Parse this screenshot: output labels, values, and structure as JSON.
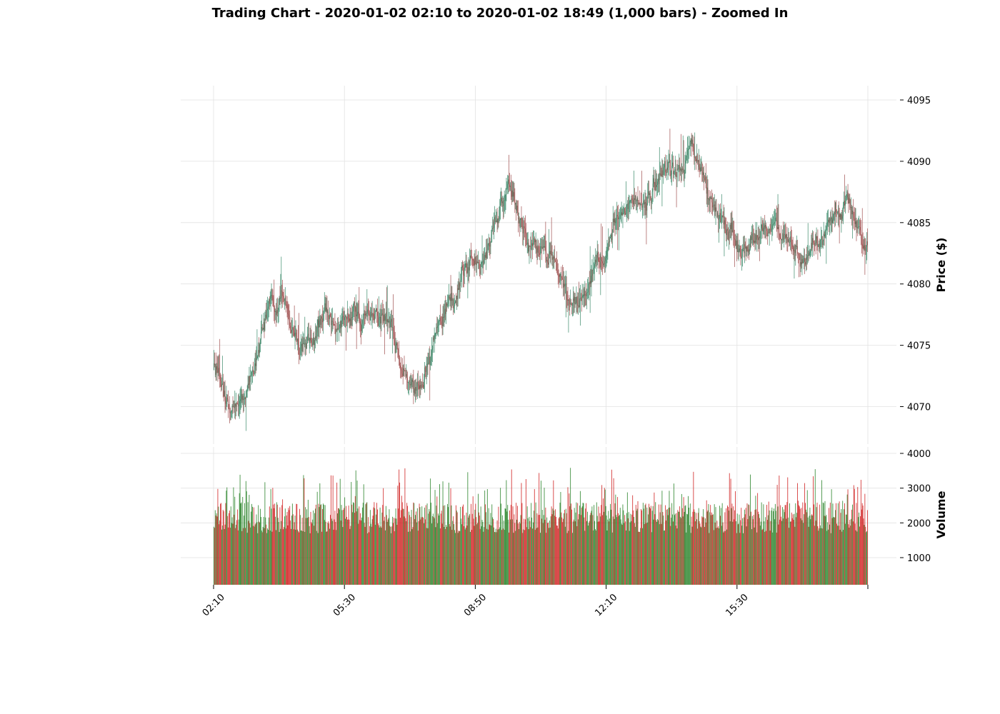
{
  "chart_data": {
    "type": "candlestick",
    "title": "Trading Chart - 2020-01-02 02:10 to 2020-01-02 18:49 (1,000 bars) - Zoomed In",
    "bar_count": 1000,
    "bar_interval_minutes": 1,
    "start": "02:10",
    "end": "18:49",
    "colors": {
      "up": "#1a7a1a",
      "down": "#cc1111",
      "up_wick": "#3a8a6a",
      "down_wick": "#a05050",
      "grid": "#e2e2e2"
    },
    "price_panel": {
      "ylabel": "Price ($)",
      "ylim": [
        4066,
        4096
      ],
      "yticks": [
        4070,
        4075,
        4080,
        4085,
        4090,
        4095
      ],
      "grid": true
    },
    "volume_panel": {
      "ylabel": "Volume",
      "ylim": [
        300,
        4000
      ],
      "yticks": [
        1000,
        2000,
        3000,
        4000
      ],
      "grid": true
    },
    "xticks": [
      {
        "label": "02:10",
        "bar": 0
      },
      {
        "label": "05:30",
        "bar": 200
      },
      {
        "label": "08:50",
        "bar": 400
      },
      {
        "label": "12:10",
        "bar": 600
      },
      {
        "label": "15:30",
        "bar": 800
      },
      {
        "label": "",
        "bar": 1000
      }
    ],
    "price_path": [
      [
        0,
        4073
      ],
      [
        10,
        4072.5
      ],
      [
        20,
        4071
      ],
      [
        30,
        4070
      ],
      [
        45,
        4071.5
      ],
      [
        60,
        4073
      ],
      [
        65,
        4075
      ],
      [
        75,
        4077
      ],
      [
        85,
        4078.5
      ],
      [
        95,
        4077
      ],
      [
        105,
        4079
      ],
      [
        120,
        4077
      ],
      [
        130,
        4075.5
      ],
      [
        140,
        4074.5
      ],
      [
        155,
        4075.5
      ],
      [
        170,
        4078.5
      ],
      [
        180,
        4077
      ],
      [
        190,
        4076
      ],
      [
        205,
        4076.5
      ],
      [
        215,
        4077.5
      ],
      [
        225,
        4077
      ],
      [
        240,
        4078
      ],
      [
        250,
        4077
      ],
      [
        270,
        4076.5
      ],
      [
        285,
        4073.5
      ],
      [
        295,
        4072
      ],
      [
        305,
        4071
      ],
      [
        315,
        4072.5
      ],
      [
        325,
        4074
      ],
      [
        340,
        4076
      ],
      [
        355,
        4077.5
      ],
      [
        370,
        4079
      ],
      [
        380,
        4081.5
      ],
      [
        395,
        4082
      ],
      [
        410,
        4081
      ],
      [
        425,
        4084
      ],
      [
        440,
        4086
      ],
      [
        450,
        4087.5
      ],
      [
        465,
        4086
      ],
      [
        480,
        4084
      ],
      [
        495,
        4083
      ],
      [
        520,
        4081.5
      ],
      [
        540,
        4079
      ],
      [
        555,
        4078
      ],
      [
        575,
        4079.5
      ],
      [
        600,
        4082
      ],
      [
        610,
        4084.5
      ],
      [
        625,
        4085.5
      ],
      [
        645,
        4086
      ],
      [
        665,
        4087.5
      ],
      [
        690,
        4089
      ],
      [
        710,
        4088.5
      ],
      [
        720,
        4090
      ],
      [
        730,
        4092.5
      ],
      [
        740,
        4091
      ],
      [
        755,
        4087.5
      ],
      [
        775,
        4085
      ],
      [
        795,
        4084
      ],
      [
        815,
        4083
      ],
      [
        835,
        4085
      ],
      [
        860,
        4084
      ],
      [
        880,
        4083.5
      ],
      [
        900,
        4082
      ],
      [
        920,
        4083
      ],
      [
        940,
        4084.5
      ],
      [
        955,
        4085.5
      ],
      [
        970,
        4087
      ],
      [
        985,
        4084.5
      ],
      [
        1000,
        4082.5
      ]
    ]
  }
}
